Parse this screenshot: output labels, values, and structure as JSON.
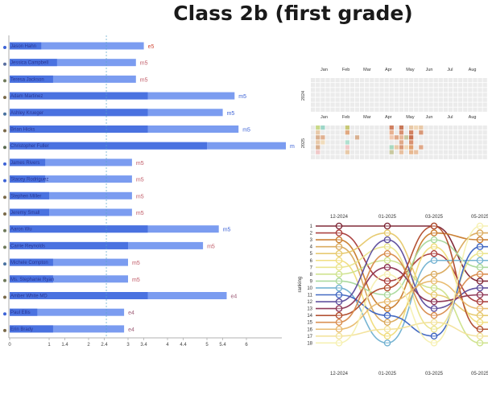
{
  "title": "Class 2b (first grade)",
  "colors": {
    "bar_light": "#7b9cf0",
    "bar_dark": "#4a72e0",
    "grade_e": "#d14b3a",
    "grade_m": "#c05a66",
    "grade_m_alt": "#3d63d6",
    "grade_e4": "#a0607a",
    "ref_line": "#5aa5c8",
    "cal_empty": "#ebebeb"
  },
  "chart_data": [
    {
      "type": "bar",
      "orientation": "horizontal",
      "title": "",
      "xlabel": "",
      "ylabel": "",
      "xlim": [
        0,
        7
      ],
      "x_ticks": [
        0,
        1,
        1.4,
        2,
        2.4,
        3,
        3.4,
        4,
        4.4,
        5,
        5.4,
        6
      ],
      "reference_line": 2.45,
      "students": [
        {
          "name": "Jason Hahn",
          "value": 3.4,
          "secondary": 0.8,
          "grade": "e5",
          "marker": "#3d63d6"
        },
        {
          "name": "Jessica Campbell",
          "value": 3.2,
          "secondary": 1.2,
          "grade": "m5",
          "marker": "#5a6fa0"
        },
        {
          "name": "Teresa Jackson",
          "value": 3.2,
          "secondary": 1.1,
          "grade": "m5",
          "marker": "#6f7a5a"
        },
        {
          "name": "Adam Martinez",
          "value": 5.7,
          "secondary": 3.5,
          "grade": "m5",
          "marker": "#7a6a4a"
        },
        {
          "name": "Ashley Krueger",
          "value": 5.4,
          "secondary": 3.5,
          "grade": "m5",
          "marker": "#4a72a0"
        },
        {
          "name": "Brian Hicks",
          "value": 5.8,
          "secondary": 3.5,
          "grade": "m5",
          "marker": "#7a6a4a"
        },
        {
          "name": "Christopher Fuller",
          "value": 7.0,
          "secondary": 5.0,
          "grade": "m",
          "marker": "#5a6a50"
        },
        {
          "name": "James Rivers",
          "value": 3.1,
          "secondary": 0.9,
          "grade": "m5",
          "marker": "#3d63d6"
        },
        {
          "name": "Stacey Rodriguez",
          "value": 3.1,
          "secondary": 0.9,
          "grade": "m5",
          "marker": "#3d63d6"
        },
        {
          "name": "Stephen Miller",
          "value": 3.1,
          "secondary": 1.0,
          "grade": "m5",
          "marker": "#7a6a4a"
        },
        {
          "name": "Jeremy Small",
          "value": 3.1,
          "secondary": 1.0,
          "grade": "m5",
          "marker": "#7a6a4a"
        },
        {
          "name": "Aaron Wu",
          "value": 5.3,
          "secondary": 3.5,
          "grade": "m5",
          "marker": "#6f7a5a"
        },
        {
          "name": "Carrie Reynolds",
          "value": 4.9,
          "secondary": 3.0,
          "grade": "m5",
          "marker": "#6f7a5a"
        },
        {
          "name": "Michele Compton",
          "value": 3.0,
          "secondary": 1.1,
          "grade": "m5",
          "marker": "#4a72a0"
        },
        {
          "name": "Ms. Stephanie Ryan",
          "value": 3.0,
          "secondary": 1.1,
          "grade": "m5",
          "marker": "#6f7a5a"
        },
        {
          "name": "Amber White MD",
          "value": 5.5,
          "secondary": 3.5,
          "grade": "e4",
          "marker": "#7a6a4a"
        },
        {
          "name": "Paul Ellis",
          "value": 2.9,
          "secondary": 0.7,
          "grade": "e4",
          "marker": "#3d63d6"
        },
        {
          "name": "Erin Brady",
          "value": 2.9,
          "secondary": 1.1,
          "grade": "e4",
          "marker": "#7a6a4a"
        }
      ]
    },
    {
      "type": "heatmap",
      "title": "",
      "months": [
        "Jan",
        "Feb",
        "Mar",
        "Apr",
        "May",
        "Jun",
        "Jul",
        "Aug"
      ],
      "years": [
        {
          "label": "2024",
          "cells": []
        },
        {
          "label": "2025",
          "cells": [
            {
              "week": 1,
              "day": 0,
              "color": "#c9d98a"
            },
            {
              "week": 1,
              "day": 1,
              "color": "#e8c9a8"
            },
            {
              "week": 1,
              "day": 2,
              "color": "#d9b090"
            },
            {
              "week": 1,
              "day": 3,
              "color": "#e8c9a8"
            },
            {
              "week": 1,
              "day": 4,
              "color": "#d9b090"
            },
            {
              "week": 1,
              "day": 5,
              "color": "#f0c8c8"
            },
            {
              "week": 2,
              "day": 0,
              "color": "#9ed6c8"
            },
            {
              "week": 2,
              "day": 2,
              "color": "#e0b090"
            },
            {
              "week": 2,
              "day": 3,
              "color": "#f0dcbc"
            },
            {
              "week": 7,
              "day": 0,
              "color": "#c8c878"
            },
            {
              "week": 7,
              "day": 1,
              "color": "#e0a880"
            },
            {
              "week": 7,
              "day": 3,
              "color": "#b0e0d0"
            },
            {
              "week": 7,
              "day": 4,
              "color": "#f0c8c8"
            },
            {
              "week": 7,
              "day": 5,
              "color": "#e8c9a8"
            },
            {
              "week": 9,
              "day": 2,
              "color": "#d9b090"
            },
            {
              "week": 16,
              "day": 0,
              "color": "#d08060"
            },
            {
              "week": 16,
              "day": 1,
              "color": "#e8b090"
            },
            {
              "week": 16,
              "day": 2,
              "color": "#f0c8b0"
            },
            {
              "week": 16,
              "day": 4,
              "color": "#a8d8c0"
            },
            {
              "week": 16,
              "day": 5,
              "color": "#c8c8a0"
            },
            {
              "week": 17,
              "day": 2,
              "color": "#e0a888"
            },
            {
              "week": 17,
              "day": 4,
              "color": "#e8c9a8"
            },
            {
              "week": 18,
              "day": 0,
              "color": "#c87858"
            },
            {
              "week": 18,
              "day": 1,
              "color": "#d89070"
            },
            {
              "week": 18,
              "day": 2,
              "color": "#e8b898"
            },
            {
              "week": 18,
              "day": 3,
              "color": "#e0a888"
            },
            {
              "week": 18,
              "day": 4,
              "color": "#d99878"
            },
            {
              "week": 18,
              "day": 5,
              "color": "#e8c0a0"
            },
            {
              "week": 19,
              "day": 2,
              "color": "#c8c8a0"
            },
            {
              "week": 19,
              "day": 4,
              "color": "#f0d8b8"
            },
            {
              "week": 20,
              "day": 0,
              "color": "#e8c9a8"
            },
            {
              "week": 20,
              "day": 1,
              "color": "#d08060"
            },
            {
              "week": 20,
              "day": 2,
              "color": "#c87050"
            },
            {
              "week": 20,
              "day": 3,
              "color": "#d89070"
            },
            {
              "week": 20,
              "day": 4,
              "color": "#e0a070"
            },
            {
              "week": 20,
              "day": 5,
              "color": "#e8b890"
            },
            {
              "week": 21,
              "day": 0,
              "color": "#f0d8b8"
            },
            {
              "week": 21,
              "day": 5,
              "color": "#e8c0a0"
            },
            {
              "week": 22,
              "day": 0,
              "color": "#e8c9a8"
            },
            {
              "week": 22,
              "day": 1,
              "color": "#d89878"
            },
            {
              "week": 22,
              "day": 4,
              "color": "#e0a888"
            }
          ]
        }
      ]
    },
    {
      "type": "line",
      "subtype": "bump",
      "title": "",
      "ylabel": "ranking",
      "x_ticks": [
        "12-2024",
        "01-2025",
        "03-2025",
        "05-2025"
      ],
      "y_ticks": [
        1,
        2,
        3,
        4,
        5,
        6,
        7,
        8,
        9,
        10,
        11,
        12,
        13,
        14,
        15,
        16,
        17,
        18
      ],
      "series": [
        {
          "color": "#7a1f2e",
          "values": [
            1,
            1,
            1,
            9
          ]
        },
        {
          "color": "#a83a38",
          "values": [
            2,
            9,
            5,
            12
          ]
        },
        {
          "color": "#c87a2a",
          "values": [
            3,
            13,
            2,
            3
          ]
        },
        {
          "color": "#d9a85a",
          "values": [
            4,
            15,
            8,
            2
          ]
        },
        {
          "color": "#e6c86a",
          "values": [
            5,
            2,
            11,
            14
          ]
        },
        {
          "color": "#f0dc7a",
          "values": [
            6,
            17,
            4,
            15
          ]
        },
        {
          "color": "#eae48a",
          "values": [
            7,
            4,
            16,
            5
          ]
        },
        {
          "color": "#cde28a",
          "values": [
            8,
            6,
            10,
            18
          ]
        },
        {
          "color": "#a8d89a",
          "values": [
            9,
            11,
            3,
            7
          ]
        },
        {
          "color": "#6fb0d0",
          "values": [
            10,
            18,
            6,
            6
          ]
        },
        {
          "color": "#3a62c0",
          "values": [
            11,
            14,
            17,
            4
          ]
        },
        {
          "color": "#5a4a9a",
          "values": [
            12,
            3,
            13,
            10
          ]
        },
        {
          "color": "#8a3050",
          "values": [
            13,
            7,
            12,
            11
          ]
        },
        {
          "color": "#b04a2a",
          "values": [
            14,
            10,
            1,
            16
          ]
        },
        {
          "color": "#d88a4a",
          "values": [
            15,
            5,
            14,
            8
          ]
        },
        {
          "color": "#e8b86a",
          "values": [
            16,
            12,
            9,
            13
          ]
        },
        {
          "color": "#f2e29a",
          "values": [
            17,
            16,
            15,
            17
          ]
        },
        {
          "color": "#f6f0b0",
          "values": [
            18,
            8,
            18,
            1
          ]
        }
      ]
    }
  ]
}
